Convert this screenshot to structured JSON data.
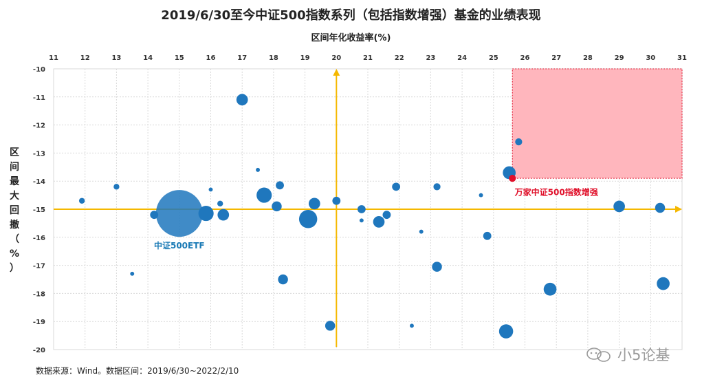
{
  "chart_data": {
    "type": "scatter",
    "title": "2019/6/30至今中证500指数系列（包括指数增强）基金的业绩表现",
    "xlabel": "区间年化收益率(%)",
    "ylabel": "区间最大回撤（%）",
    "xlim": [
      11,
      31
    ],
    "ylim": [
      -20,
      -10
    ],
    "xticks": [
      11,
      12,
      13,
      14,
      15,
      16,
      17,
      18,
      19,
      20,
      21,
      22,
      23,
      24,
      25,
      26,
      27,
      28,
      29,
      30,
      31
    ],
    "yticks": [
      -10,
      -11,
      -12,
      -13,
      -14,
      -15,
      -16,
      -17,
      -18,
      -19,
      -20
    ],
    "x_axis_position": "top",
    "grid": true,
    "crosshair": {
      "x": 20,
      "y": -15,
      "color": "#f5b800"
    },
    "highlight_region": {
      "x": [
        25.6,
        31
      ],
      "y": [
        -13.9,
        -10
      ],
      "color": "#ffb6bd"
    },
    "point_color": "#1f77bd",
    "points": [
      {
        "x": 17.0,
        "y": -11.1,
        "s": 4
      },
      {
        "x": 17.5,
        "y": -13.6,
        "s": 0.5
      },
      {
        "x": 16.0,
        "y": -14.3,
        "s": 0.5
      },
      {
        "x": 18.2,
        "y": -14.15,
        "s": 2
      },
      {
        "x": 17.7,
        "y": -14.5,
        "s": 7
      },
      {
        "x": 18.1,
        "y": -14.9,
        "s": 3
      },
      {
        "x": 19.3,
        "y": -14.8,
        "s": 4
      },
      {
        "x": 20.0,
        "y": -14.7,
        "s": 2
      },
      {
        "x": 16.3,
        "y": -14.8,
        "s": 1
      },
      {
        "x": 11.9,
        "y": -14.7,
        "s": 1
      },
      {
        "x": 13.0,
        "y": -14.2,
        "s": 1
      },
      {
        "x": 14.2,
        "y": -15.2,
        "s": 2
      },
      {
        "x": 15.0,
        "y": -15.15,
        "s": 28
      },
      {
        "x": 15.85,
        "y": -15.15,
        "s": 7
      },
      {
        "x": 16.4,
        "y": -15.2,
        "s": 4
      },
      {
        "x": 19.1,
        "y": -15.35,
        "s": 10
      },
      {
        "x": 20.8,
        "y": -15.0,
        "s": 2
      },
      {
        "x": 20.8,
        "y": -15.4,
        "s": 0.5
      },
      {
        "x": 21.35,
        "y": -15.45,
        "s": 4
      },
      {
        "x": 21.6,
        "y": -15.2,
        "s": 2
      },
      {
        "x": 21.9,
        "y": -14.2,
        "s": 2
      },
      {
        "x": 23.2,
        "y": -14.2,
        "s": 1.5
      },
      {
        "x": 22.7,
        "y": -15.8,
        "s": 0.5
      },
      {
        "x": 24.8,
        "y": -15.95,
        "s": 2
      },
      {
        "x": 23.2,
        "y": -17.05,
        "s": 3
      },
      {
        "x": 18.3,
        "y": -17.5,
        "s": 3
      },
      {
        "x": 13.5,
        "y": -17.3,
        "s": 0.5
      },
      {
        "x": 19.8,
        "y": -19.15,
        "s": 3
      },
      {
        "x": 22.4,
        "y": -19.15,
        "s": 0.5
      },
      {
        "x": 25.4,
        "y": -19.35,
        "s": 6
      },
      {
        "x": 26.8,
        "y": -17.85,
        "s": 5
      },
      {
        "x": 30.4,
        "y": -17.65,
        "s": 5
      },
      {
        "x": 29.0,
        "y": -14.9,
        "s": 4
      },
      {
        "x": 30.3,
        "y": -14.95,
        "s": 3
      },
      {
        "x": 25.5,
        "y": -13.7,
        "s": 5
      },
      {
        "x": 25.8,
        "y": -12.6,
        "s": 1.5
      },
      {
        "x": 25.6,
        "y": -13.9,
        "s": 1.5,
        "color": "#e0102a"
      },
      {
        "x": 24.6,
        "y": -14.5,
        "s": 0.5
      }
    ],
    "annotations": [
      {
        "text": "中证500ETF",
        "x": 15.0,
        "y": -16.3,
        "color": "#1a7ab5"
      },
      {
        "text": "万家中证500指数增强",
        "x": 27.0,
        "y": -14.4,
        "color": "#e0102a"
      }
    ]
  },
  "footer": {
    "source": "数据来源：Wind。数据区间：2019/6/30~2022/2/10",
    "watermark": "小5论基"
  }
}
